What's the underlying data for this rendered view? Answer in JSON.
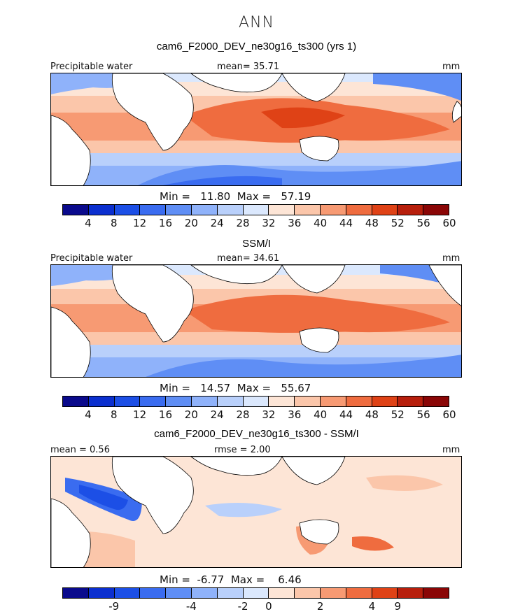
{
  "season": "ANN",
  "model_title": "cam6_F2000_DEV_ne30g16_ts300 (yrs 1)",
  "panels": [
    {
      "left_label": "Precipitable water",
      "center_label": "mean=  35.71",
      "units": "mm",
      "min_max": "Min =   11.80  Max =   57.19",
      "colorbar_ticks": [
        "4",
        "8",
        "12",
        "16",
        "20",
        "24",
        "28",
        "32",
        "36",
        "40",
        "44",
        "48",
        "52",
        "56",
        "60"
      ]
    },
    {
      "title": "SSM/I",
      "left_label": "Precipitable water",
      "center_label": "mean=  34.61",
      "units": "mm",
      "min_max": "Min =   14.57  Max =   55.67",
      "colorbar_ticks": [
        "4",
        "8",
        "12",
        "16",
        "20",
        "24",
        "28",
        "32",
        "36",
        "40",
        "44",
        "48",
        "52",
        "56",
        "60"
      ]
    },
    {
      "title": "cam6_F2000_DEV_ne30g16_ts300 - SSM/I",
      "left_label": "mean =    0.56",
      "center_label": "rmse =    2.00",
      "units": "mm",
      "min_max": "Min =  -6.77  Max =    6.46",
      "colorbar_ticks": [
        "-9",
        "-4",
        "-2",
        "0",
        "2",
        "4",
        "9"
      ]
    }
  ],
  "colorbar_colors": [
    "#0a0a8c",
    "#0b2fcf",
    "#1c4fe6",
    "#3a6cf0",
    "#5f8ef5",
    "#8fb2fa",
    "#b9d0fb",
    "#dbe8fd",
    "#fde5d6",
    "#fbc6aa",
    "#f79a73",
    "#ef6c3f",
    "#df4216",
    "#b71f0c",
    "#8a0606"
  ]
}
